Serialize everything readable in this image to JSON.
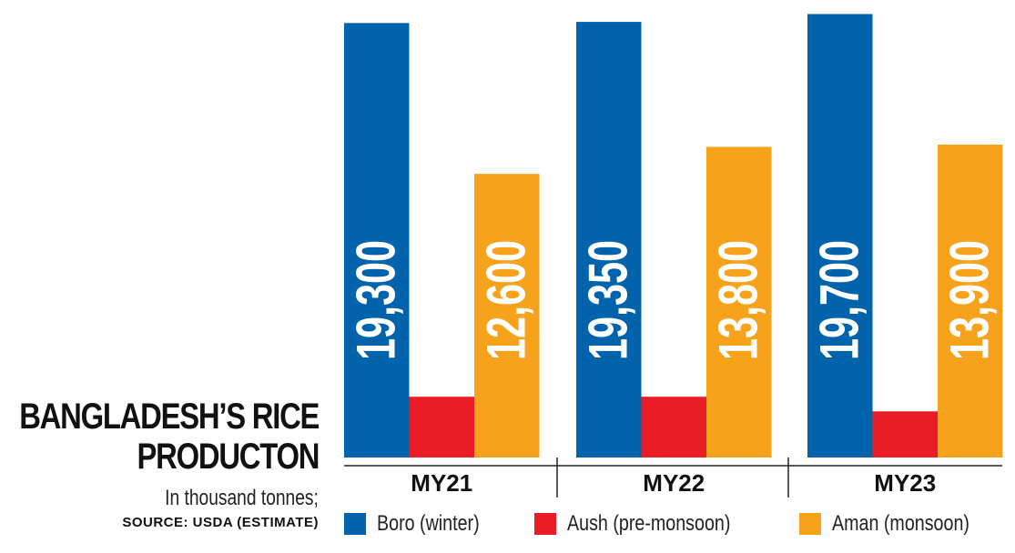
{
  "title": {
    "line1": "BANGLADESH’S RICE",
    "line2": "PRODUCTON"
  },
  "subtitle": "In thousand tonnes;",
  "source": "SOURCE: USDA (ESTIMATE)",
  "colors": {
    "boro": "#0063ac",
    "aush": "#ea1c25",
    "aman": "#f7a21b"
  },
  "chart_data": {
    "type": "bar",
    "title": "BANGLADESH’S RICE PRODUCTON",
    "subtitle": "In thousand tonnes;",
    "categories": [
      "MY21",
      "MY22",
      "MY23"
    ],
    "series": [
      {
        "name": "Boro (winter)",
        "key": "boro",
        "values": [
          19300,
          19350,
          19700
        ],
        "labels": [
          "19,300",
          "19,350",
          "19,700"
        ]
      },
      {
        "name": "Aush (pre-monsoon)",
        "key": "aush",
        "values": [
          2700,
          2700,
          2050
        ],
        "labels": []
      },
      {
        "name": "Aman (monsoon)",
        "key": "aman",
        "values": [
          12600,
          13800,
          13900
        ],
        "labels": [
          "12,600",
          "13,800",
          "13,900"
        ]
      }
    ],
    "ylim": [
      0,
      20000
    ],
    "grid": false,
    "legend": "bottom"
  }
}
